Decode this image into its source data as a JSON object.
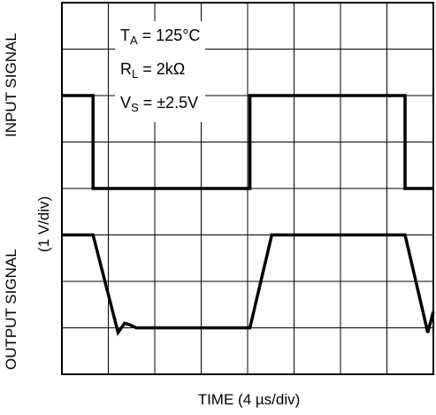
{
  "chart_data": {
    "type": "line",
    "title": "",
    "xlabel": "TIME (4 µs/div)",
    "ylabel_top": "INPUT SIGNAL",
    "ylabel_bottom": "OUTPUT SIGNAL",
    "y_scale_label": "(1 V/div)",
    "grid": true,
    "x_divisions": 8,
    "y_divisions": 8,
    "x_unit_per_div": "4 µs",
    "y_unit_per_div": "1 V",
    "conditions": [
      {
        "symbol": "T",
        "sub": "A",
        "value": " = 125°C"
      },
      {
        "symbol": "R",
        "sub": "L",
        "value": " = 2kΩ"
      },
      {
        "symbol": "V",
        "sub": "S",
        "value": " = ±2.5V"
      }
    ],
    "series": [
      {
        "key": "input",
        "x_div": [
          0,
          0.67,
          0.67,
          4.05,
          4.05,
          7.39,
          7.39,
          8.0
        ],
        "y_div": [
          6.0,
          6.0,
          4.0,
          4.0,
          6.0,
          6.0,
          4.0,
          4.0
        ]
      },
      {
        "key": "output",
        "x_div": [
          0,
          0.67,
          1.21,
          1.35,
          1.45,
          1.6,
          4.05,
          4.52,
          7.39,
          7.88,
          8.0
        ],
        "y_div": [
          3.0,
          3.0,
          0.9,
          1.1,
          1.07,
          1.0,
          1.0,
          3.0,
          3.0,
          0.9,
          1.35
        ]
      }
    ],
    "colors": {
      "trace": "#000000",
      "grid": "#000000",
      "background": "#ffffff"
    }
  }
}
